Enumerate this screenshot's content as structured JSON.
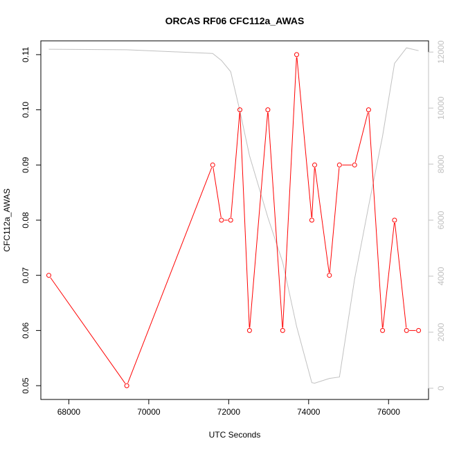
{
  "chart_data": {
    "type": "line",
    "title": "ORCAS RF06 CFC112a_AWAS",
    "xlabel": "UTC Seconds",
    "ylabel": "CFC112a_AWAS",
    "xlim": [
      67300,
      77000
    ],
    "ylim": [
      0.0475,
      0.1125
    ],
    "y2lim": [
      -400,
      12400
    ],
    "x_ticks": [
      68000,
      70000,
      72000,
      74000,
      76000
    ],
    "y_ticks": [
      0.05,
      0.06,
      0.07,
      0.08,
      0.09,
      0.1,
      0.11
    ],
    "y_tick_labels": [
      "0.05",
      "0.06",
      "0.07",
      "0.08",
      "0.09",
      "0.10",
      "0.11"
    ],
    "y2_ticks": [
      0,
      2000,
      4000,
      6000,
      8000,
      10000,
      12000
    ],
    "y2_tick_labels": [
      "0",
      "2000",
      "4000",
      "6000",
      "8000",
      "10000",
      "12000"
    ],
    "colors": {
      "primary": "#ff0000",
      "secondary": "#c0c0c0",
      "axis": "#000000"
    },
    "series": [
      {
        "axis": "left",
        "style": "line+points",
        "color": "#ff0000",
        "x": [
          67500,
          69450,
          71600,
          71820,
          72050,
          72280,
          72520,
          72980,
          73350,
          73700,
          74080,
          74150,
          74520,
          74770,
          75150,
          75500,
          75850,
          76150,
          76450,
          76750
        ],
        "y": [
          0.07,
          0.05,
          0.09,
          0.08,
          0.08,
          0.1,
          0.06,
          0.1,
          0.06,
          0.11,
          0.08,
          0.09,
          0.07,
          0.09,
          0.09,
          0.1,
          0.06,
          0.08,
          0.06,
          0.06
        ]
      },
      {
        "axis": "right",
        "style": "line",
        "color": "#c0c0c0",
        "x": [
          67500,
          69450,
          71600,
          71820,
          72050,
          72280,
          72520,
          72980,
          73350,
          73700,
          74080,
          74150,
          74520,
          74770,
          75150,
          75500,
          75850,
          76150,
          76450,
          76750
        ],
        "y": [
          12100,
          12080,
          11950,
          11700,
          11300,
          9900,
          8300,
          6100,
          4500,
          2200,
          200,
          180,
          350,
          400,
          3900,
          6500,
          9000,
          11600,
          12150,
          12050
        ]
      }
    ]
  }
}
